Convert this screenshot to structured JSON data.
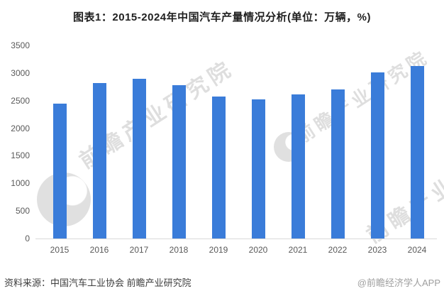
{
  "title": "图表1：2015-2024年中国汽车产量情况分析(单位：万辆，%)",
  "footer": {
    "source": "资料来源：中国汽车工业协会 前瞻产业研究院",
    "credit": "@前瞻经济学人APP"
  },
  "watermark": {
    "text": "前瞻产业研究院",
    "logo": "qianzhan-logo"
  },
  "colors": {
    "bar": "#3A7CD9",
    "title_text": "#1f1f1f",
    "axis_text": "#595959",
    "axis_line": "#d9d9d9",
    "source_text": "#3d3d3d",
    "credit_text": "#9e9e9e",
    "watermark": "rgba(0,0,0,0.13)"
  },
  "chart_data": {
    "type": "bar",
    "title": "图表1：2015-2024年中国汽车产量情况分析(单位：万辆，%)",
    "categories": [
      "2015",
      "2016",
      "2017",
      "2018",
      "2019",
      "2020",
      "2021",
      "2022",
      "2023",
      "2024"
    ],
    "values": [
      2450.3,
      2811.9,
      2901.5,
      2780.9,
      2572.1,
      2522.5,
      2608.2,
      2702.1,
      3016.1,
      3128.2
    ],
    "xlabel": "",
    "ylabel": "",
    "ylim": [
      0,
      3500
    ],
    "yticks": [
      0,
      500,
      1000,
      1500,
      2000,
      2500,
      3000,
      3500
    ],
    "grid": false,
    "legend": "none",
    "bar_color": "#3A7CD9"
  }
}
